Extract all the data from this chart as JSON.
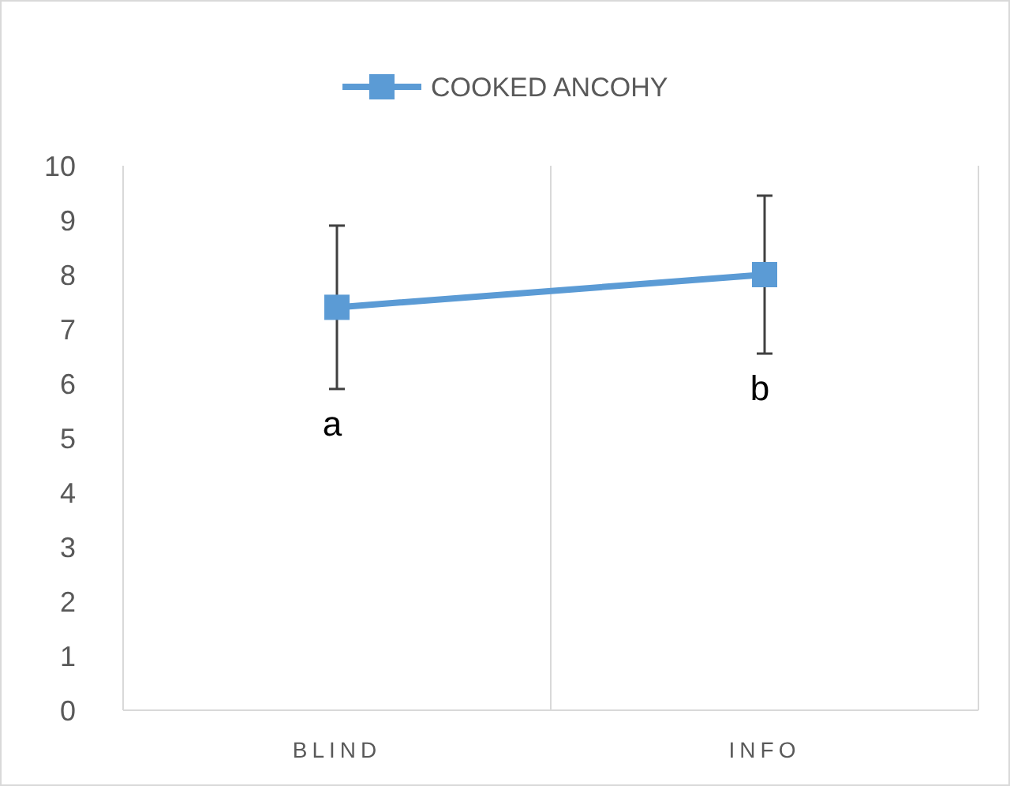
{
  "chart_data": {
    "type": "line",
    "categories": [
      "BLIND",
      "INFO"
    ],
    "series": [
      {
        "name": "COOKED ANCOHY",
        "color": "#5b9bd5",
        "values": [
          7.4,
          8.0
        ],
        "errors": [
          1.5,
          1.45
        ]
      }
    ],
    "ylim": [
      0,
      10
    ],
    "yticks": [
      0,
      1,
      2,
      3,
      4,
      5,
      6,
      7,
      8,
      9,
      10
    ],
    "grid": "x",
    "legend": "top",
    "marker": "square",
    "line_style": "solid",
    "annotations": [
      "a",
      "b"
    ]
  }
}
